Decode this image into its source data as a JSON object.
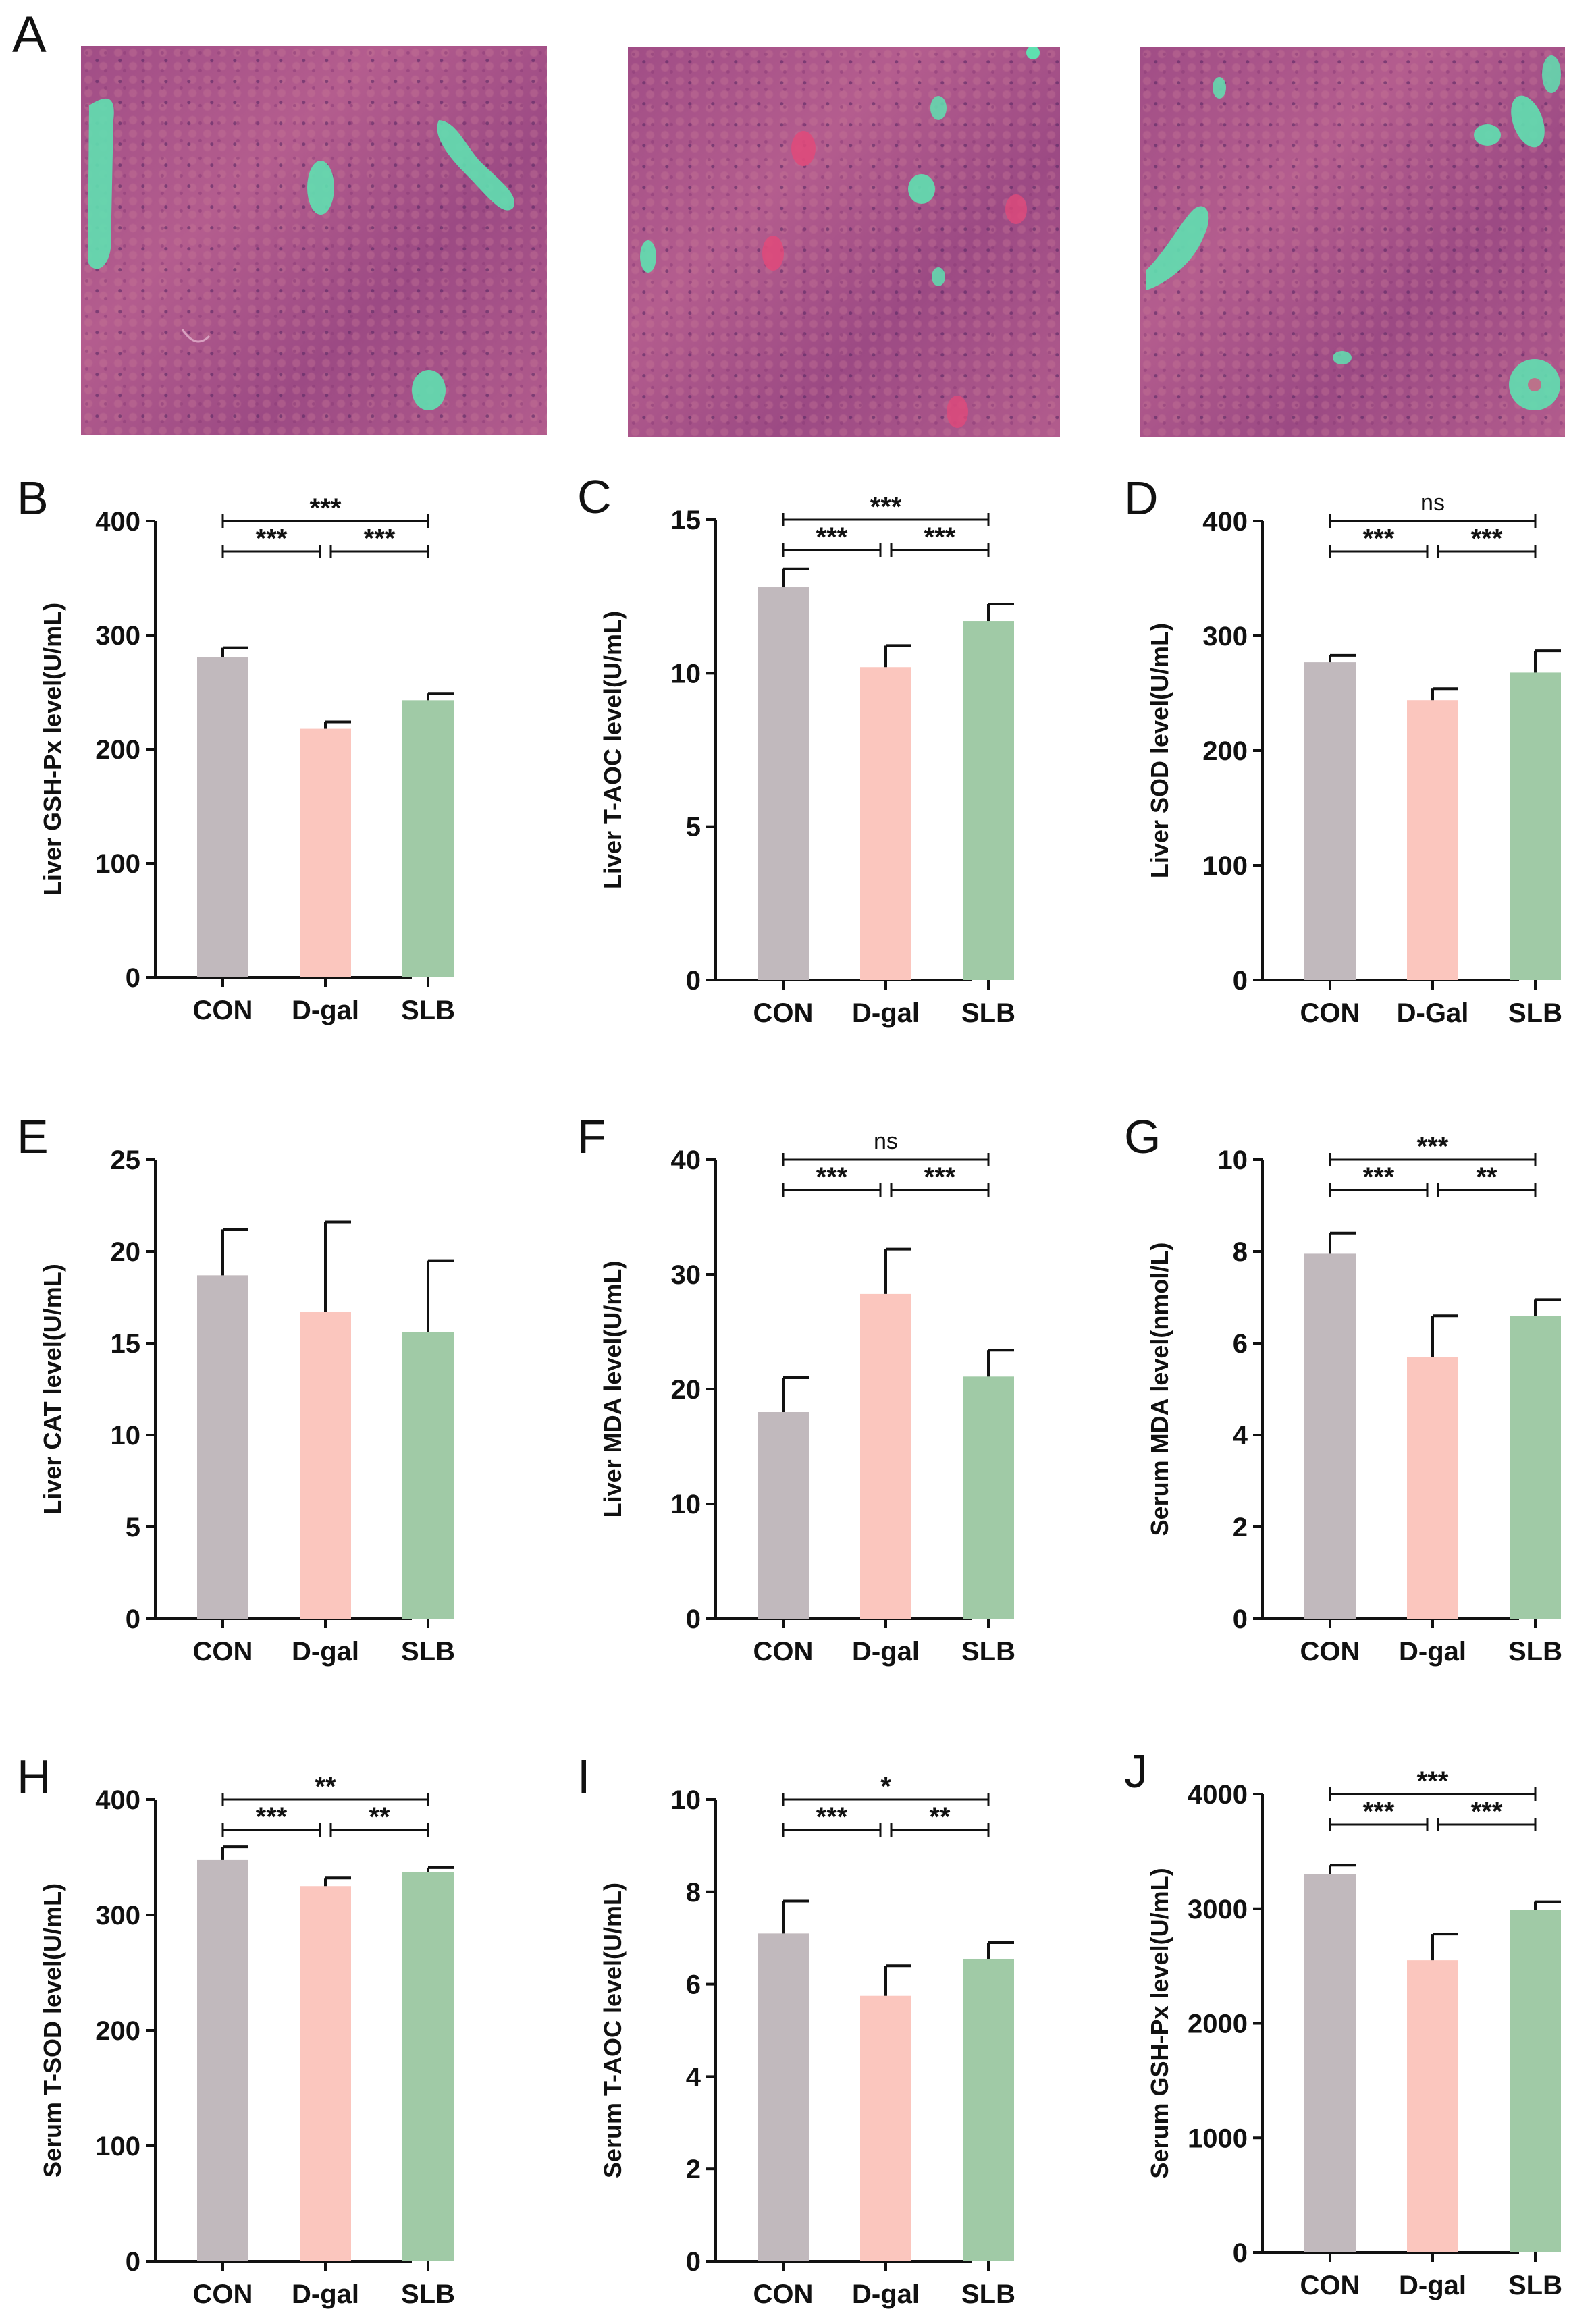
{
  "figure": {
    "panel_a_label": "A"
  },
  "colors": {
    "con": "#c1b9bd",
    "dgal": "#fbc6be",
    "slb": "#a0caa6",
    "axis": "#111111",
    "vessel": "#5fe0b0",
    "tissue": "#a65088",
    "blood": "#e0497a"
  },
  "chart_data": [
    {
      "panel": "B",
      "type": "bar",
      "categories": [
        "CON",
        "D-gal",
        "SLB"
      ],
      "values": [
        281,
        218,
        243
      ],
      "errors": [
        8,
        6,
        6
      ],
      "ylabel": "Liver GSH-Px level(U/mL)",
      "ylim": [
        0,
        400
      ],
      "yticks": [
        "0",
        "100",
        "200",
        "300",
        "400"
      ],
      "significance": [
        {
          "from": 0,
          "to": 1,
          "label": "***"
        },
        {
          "from": 1,
          "to": 2,
          "label": "***"
        },
        {
          "from": 0,
          "to": 2,
          "label": "***"
        }
      ]
    },
    {
      "panel": "C",
      "type": "bar",
      "categories": [
        "CON",
        "D-gal",
        "SLB"
      ],
      "values": [
        12.8,
        10.2,
        11.7
      ],
      "errors": [
        0.6,
        0.7,
        0.55
      ],
      "ylabel": "Liver T-AOC level(U/mL)",
      "ylim": [
        0,
        15
      ],
      "yticks": [
        "0",
        "5",
        "10",
        "15"
      ],
      "significance": [
        {
          "from": 0,
          "to": 1,
          "label": "***"
        },
        {
          "from": 1,
          "to": 2,
          "label": "***"
        },
        {
          "from": 0,
          "to": 2,
          "label": "***"
        }
      ]
    },
    {
      "panel": "D",
      "type": "bar",
      "categories": [
        "CON",
        "D-Gal",
        "SLB"
      ],
      "values": [
        277,
        244,
        268
      ],
      "errors": [
        6,
        10,
        19
      ],
      "ylabel": "Liver SOD level(U/mL)",
      "ylim": [
        0,
        400
      ],
      "yticks": [
        "0",
        "100",
        "200",
        "300",
        "400"
      ],
      "significance": [
        {
          "from": 0,
          "to": 1,
          "label": "***"
        },
        {
          "from": 1,
          "to": 2,
          "label": "***"
        },
        {
          "from": 0,
          "to": 2,
          "label": "ns"
        }
      ]
    },
    {
      "panel": "E",
      "type": "bar",
      "categories": [
        "CON",
        "D-gal",
        "SLB"
      ],
      "values": [
        18.7,
        16.7,
        15.6
      ],
      "errors": [
        2.5,
        4.9,
        3.9
      ],
      "ylabel": "Liver CAT level(U/mL)",
      "ylim": [
        0,
        25
      ],
      "yticks": [
        "0",
        "5",
        "10",
        "15",
        "20",
        "25"
      ],
      "significance": []
    },
    {
      "panel": "F",
      "type": "bar",
      "categories": [
        "CON",
        "D-gal",
        "SLB"
      ],
      "values": [
        18,
        28.3,
        21.1
      ],
      "errors": [
        3,
        3.9,
        2.3
      ],
      "ylabel": "Liver MDA level(U/mL)",
      "ylim": [
        0,
        40
      ],
      "yticks": [
        "0",
        "10",
        "20",
        "30",
        "40"
      ],
      "significance": [
        {
          "from": 0,
          "to": 1,
          "label": "***"
        },
        {
          "from": 1,
          "to": 2,
          "label": "***"
        },
        {
          "from": 0,
          "to": 2,
          "label": "ns"
        }
      ]
    },
    {
      "panel": "G",
      "type": "bar",
      "categories": [
        "CON",
        "D-gal",
        "SLB"
      ],
      "values": [
        7.95,
        5.7,
        6.6
      ],
      "errors": [
        0.45,
        0.9,
        0.35
      ],
      "ylabel": "Serum MDA level(nmol/L)",
      "ylim": [
        0,
        10
      ],
      "yticks": [
        "0",
        "2",
        "4",
        "6",
        "8",
        "10"
      ],
      "significance": [
        {
          "from": 0,
          "to": 1,
          "label": "***"
        },
        {
          "from": 1,
          "to": 2,
          "label": "**"
        },
        {
          "from": 0,
          "to": 2,
          "label": "***"
        }
      ]
    },
    {
      "panel": "H",
      "type": "bar",
      "categories": [
        "CON",
        "D-gal",
        "SLB"
      ],
      "values": [
        348,
        325,
        337
      ],
      "errors": [
        11,
        7,
        4
      ],
      "ylabel": "Serum T-SOD level(U/mL)",
      "ylim": [
        0,
        400
      ],
      "yticks": [
        "0",
        "100",
        "200",
        "300",
        "400"
      ],
      "significance": [
        {
          "from": 0,
          "to": 1,
          "label": "***"
        },
        {
          "from": 1,
          "to": 2,
          "label": "**"
        },
        {
          "from": 0,
          "to": 2,
          "label": "**"
        }
      ]
    },
    {
      "panel": "I",
      "type": "bar",
      "categories": [
        "CON",
        "D-gal",
        "SLB"
      ],
      "values": [
        7.1,
        5.75,
        6.55
      ],
      "errors": [
        0.7,
        0.65,
        0.35
      ],
      "ylabel": "Serum T-AOC level(U/mL)",
      "ylim": [
        0,
        10
      ],
      "yticks": [
        "0",
        "2",
        "4",
        "6",
        "8",
        "10"
      ],
      "significance": [
        {
          "from": 0,
          "to": 1,
          "label": "***"
        },
        {
          "from": 1,
          "to": 2,
          "label": "**"
        },
        {
          "from": 0,
          "to": 2,
          "label": "*"
        }
      ]
    },
    {
      "panel": "J",
      "type": "bar",
      "categories": [
        "CON",
        "D-gal",
        "SLB"
      ],
      "values": [
        3300,
        2550,
        2990
      ],
      "errors": [
        80,
        230,
        70
      ],
      "ylabel": "Serum GSH-Px level(U/mL)",
      "ylim": [
        0,
        4000
      ],
      "yticks": [
        "0",
        "1000",
        "2000",
        "3000",
        "4000"
      ],
      "significance": [
        {
          "from": 0,
          "to": 1,
          "label": "***"
        },
        {
          "from": 1,
          "to": 2,
          "label": "***"
        },
        {
          "from": 0,
          "to": 2,
          "label": "***"
        }
      ]
    }
  ]
}
